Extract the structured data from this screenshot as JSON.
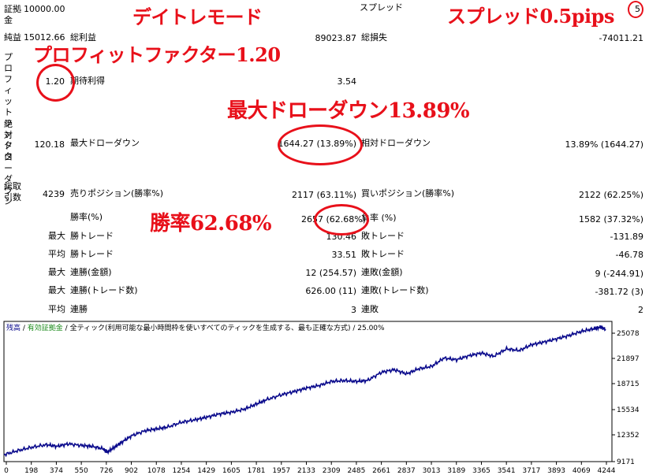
{
  "report": {
    "deposit": {
      "label": "証拠金",
      "value": "10000.00"
    },
    "spread": {
      "label": "スプレッド",
      "value": "5"
    },
    "net_profit": {
      "label": "純益",
      "value": "15012.66"
    },
    "gross_profit": {
      "label": "総利益",
      "value": "89023.87"
    },
    "gross_loss": {
      "label": "総損失",
      "value": "-74011.21"
    },
    "profit_factor": {
      "label": "プロフィットファクタ",
      "value": "1.20"
    },
    "expected_payoff": {
      "label": "期待利得",
      "value": "3.54"
    },
    "abs_drawdown": {
      "label": "絶対ドローダウン",
      "value": "120.18"
    },
    "max_drawdown": {
      "label": "最大ドローダウン",
      "value": "1644.27 (13.89%)"
    },
    "rel_drawdown": {
      "label": "相対ドローダウン",
      "value": "13.89% (1644.27)"
    },
    "total_trades": {
      "label": "総取引数",
      "value": "4239"
    },
    "short_positions": {
      "label": "売りポジション(勝率%)",
      "value": "2117 (63.11%)"
    },
    "long_positions": {
      "label": "買いポジション(勝率%)",
      "value": "2122 (62.25%)"
    },
    "profit_trades": {
      "label": "勝率(%)",
      "value": "2657 (62.68%)"
    },
    "loss_trades": {
      "label": "負率 (%)",
      "value": "1582 (37.32%)"
    },
    "rows": [
      {
        "prefix": "最大",
        "win_label": "勝トレード",
        "win_value": "130.46",
        "loss_label": "敗トレード",
        "loss_value": "-131.89"
      },
      {
        "prefix": "平均",
        "win_label": "勝トレード",
        "win_value": "33.51",
        "loss_label": "敗トレード",
        "loss_value": "-46.78"
      },
      {
        "prefix": "最大",
        "win_label": "連勝(金額)",
        "win_value": "12 (254.57)",
        "loss_label": "連敗(金額)",
        "loss_value": "9 (-244.91)"
      },
      {
        "prefix": "最大",
        "win_label": "連勝(トレード数)",
        "win_value": "626.00 (11)",
        "loss_label": "連敗(トレード数)",
        "loss_value": "-381.72 (3)"
      },
      {
        "prefix": "平均",
        "win_label": "連勝",
        "win_value": "3",
        "loss_label": "連敗",
        "loss_value": "2"
      }
    ]
  },
  "annotations": {
    "mode": "デイトレモード",
    "spread": "スプレッド0.5pips",
    "profit_factor": "プロフィットファクター1.20",
    "max_drawdown": "最大ドローダウン13.89%",
    "win_rate": "勝率62.68%"
  },
  "chart_header": {
    "balance": "残高",
    "sep1": " / ",
    "margin": "有効証拠金",
    "sep2": " / ",
    "rest": "全ティック(利用可能な最小時間枠を使いすべてのティックを生成する、最も正確な方式) / 25.00%"
  },
  "colors": {
    "annotation": "#e8101a",
    "line": "#0a0a8c",
    "margin_text": "#1a8a1a"
  },
  "chart_data": {
    "type": "line",
    "xlim": [
      0,
      4239
    ],
    "ylim": [
      9171,
      26000
    ],
    "x_ticks": [
      "0",
      "198",
      "374",
      "550",
      "726",
      "902",
      "1078",
      "1254",
      "1429",
      "1605",
      "1781",
      "1957",
      "2133",
      "2309",
      "2485",
      "2661",
      "2837",
      "3013",
      "3189",
      "3365",
      "3541",
      "3717",
      "3893",
      "4069",
      "4244"
    ],
    "y_ticks": [
      "25078",
      "21897",
      "18715",
      "15534",
      "12352",
      "9171"
    ],
    "series": [
      {
        "x": [
          0,
          100,
          198,
          300,
          374,
          450,
          550,
          620,
          700,
          726,
          780,
          830,
          902,
          1000,
          1078,
          1150,
          1254,
          1350,
          1429,
          1520,
          1605,
          1700,
          1781,
          1850,
          1957,
          2050,
          2133,
          2220,
          2309,
          2400,
          2485,
          2560,
          2661,
          2750,
          2837,
          2920,
          3013,
          3100,
          3189,
          3280,
          3365,
          3450,
          3541,
          3630,
          3717,
          3800,
          3893,
          3980,
          4069,
          4150,
          4200,
          4239
        ],
        "y": [
          10000,
          10500,
          10900,
          11200,
          11000,
          11300,
          11100,
          11000,
          10700,
          10300,
          10900,
          11500,
          12300,
          12900,
          13100,
          13300,
          13900,
          14200,
          14500,
          14900,
          15100,
          15500,
          16100,
          16600,
          17200,
          17600,
          18000,
          18300,
          18800,
          18900,
          18800,
          18900,
          19900,
          20200,
          19700,
          20300,
          20600,
          21600,
          21400,
          21900,
          22200,
          21800,
          22700,
          22500,
          23200,
          23500,
          23900,
          24300,
          24800,
          25100,
          25300,
          25050
        ]
      }
    ]
  }
}
